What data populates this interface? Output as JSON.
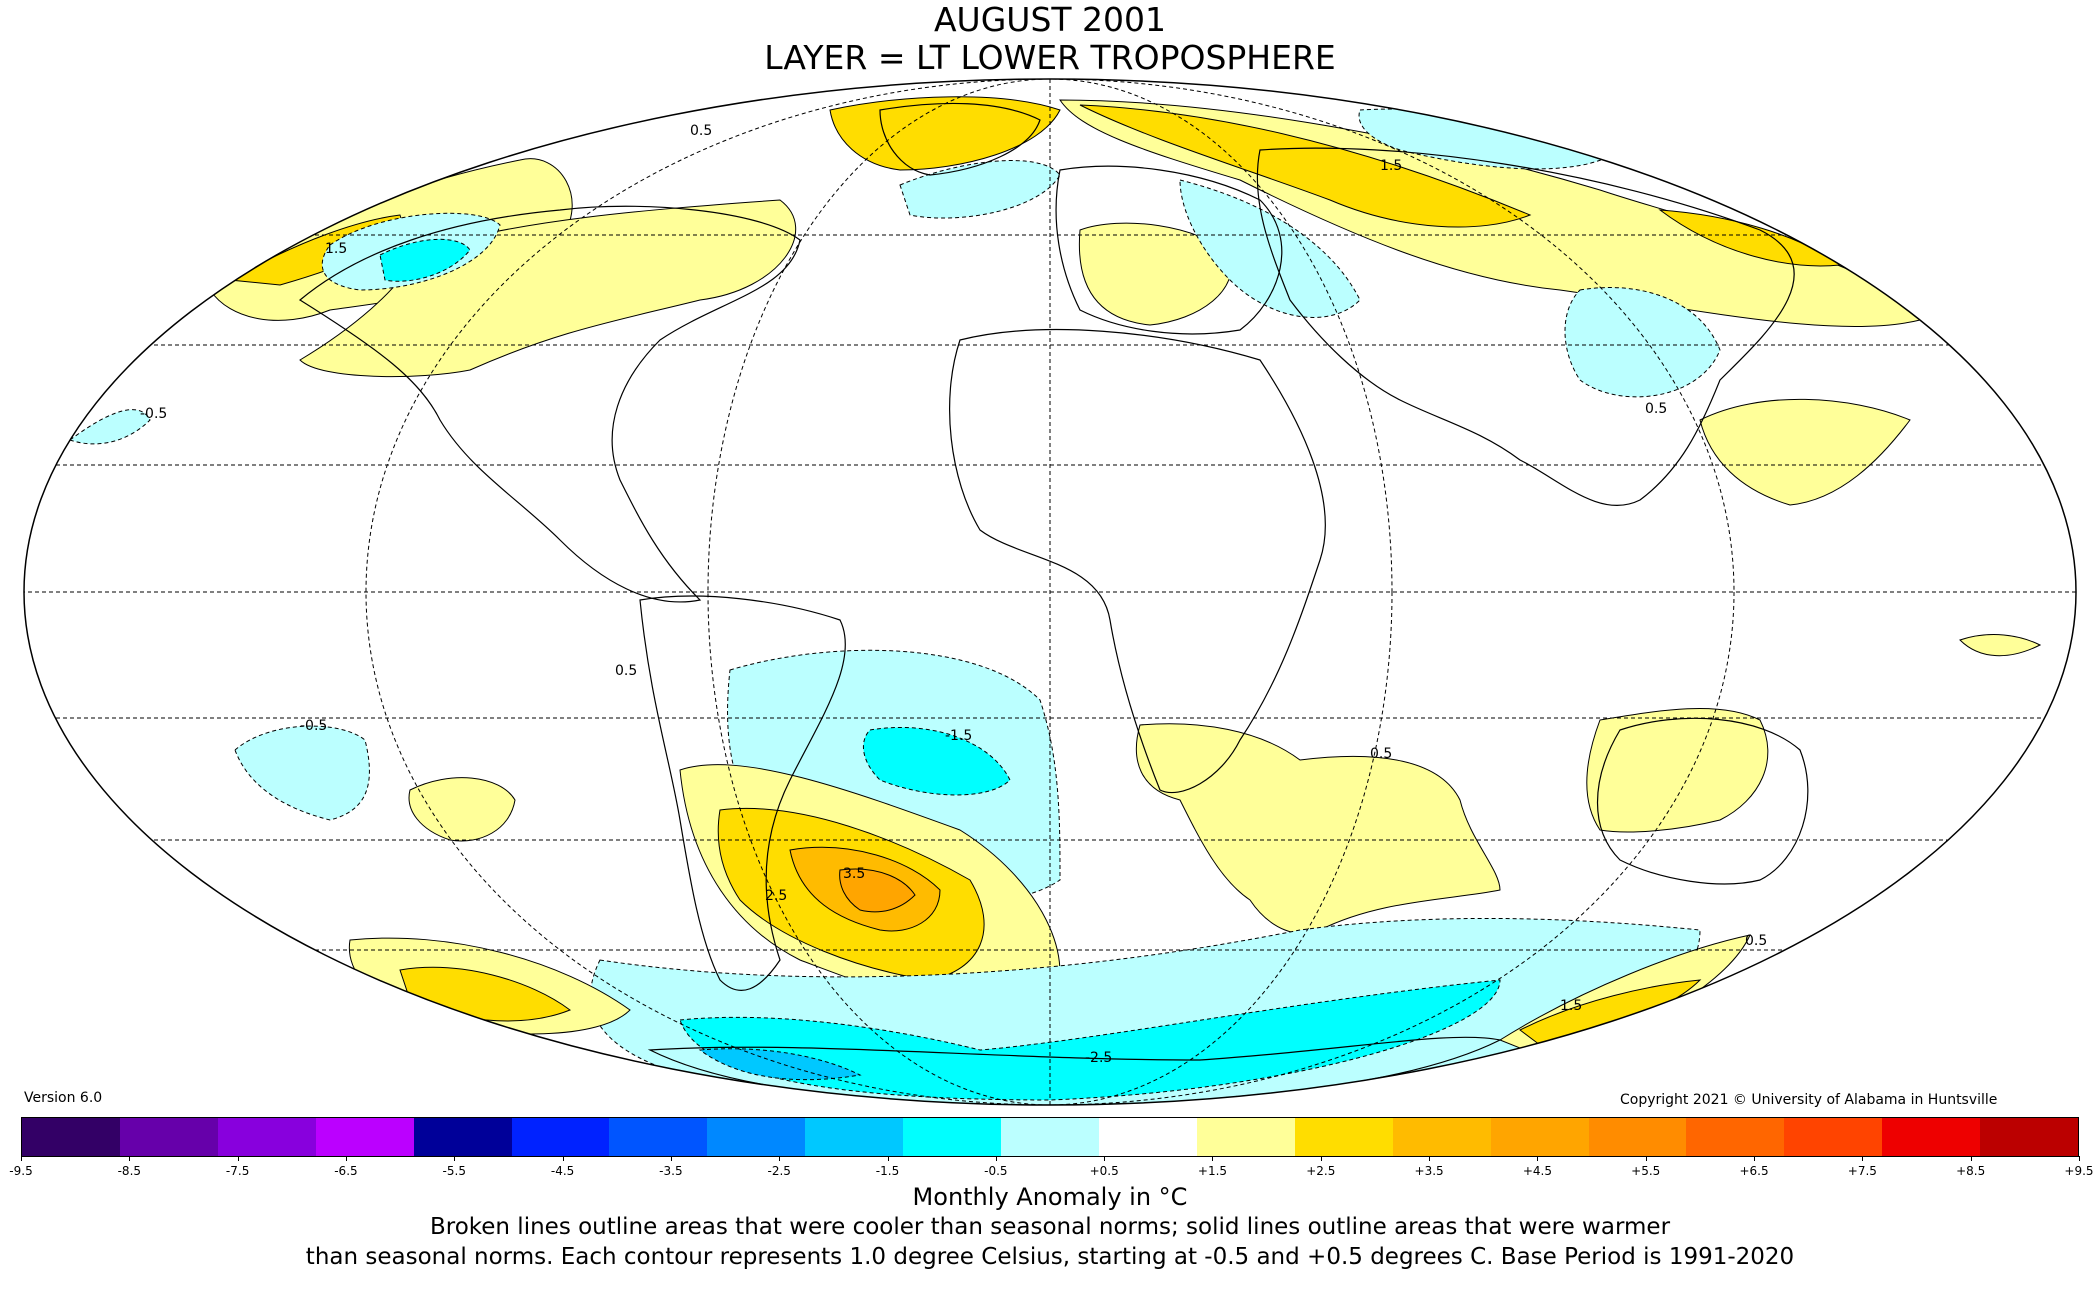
{
  "title": "AUGUST 2001",
  "subtitle": "LAYER = LT LOWER TROPOSPHERE",
  "version": "Version 6.0",
  "copyright": "Copyright 2021 © University of Alabama in Huntsville",
  "colorbar": {
    "ticks": [
      "-9.5",
      "-8.5",
      "-7.5",
      "-6.5",
      "-5.5",
      "-4.5",
      "-3.5",
      "-2.5",
      "-1.5",
      "-0.5",
      "+0.5",
      "+1.5",
      "+2.5",
      "+3.5",
      "+4.5",
      "+5.5",
      "+6.5",
      "+7.5",
      "+8.5",
      "+9.5"
    ],
    "colors": [
      "#330066",
      "#6600aa",
      "#8800dd",
      "#bb00ff",
      "#000099",
      "#0022ff",
      "#0055ff",
      "#0088ff",
      "#00c8ff",
      "#00ffff",
      "#bbffff",
      "#ffffff",
      "#ffff99",
      "#ffdd00",
      "#ffbb00",
      "#ffa500",
      "#ff8c00",
      "#ff6600",
      "#ff4400",
      "#ee0000",
      "#bb0000"
    ]
  },
  "unit_label": "Monthly Anomaly in °C",
  "caption_line1": "Broken lines outline areas that were cooler than seasonal norms; solid lines outline areas that were warmer",
  "caption_line2": "than seasonal norms. Each contour represents 1.0 degree Celsius, starting at -0.5 and +0.5 degrees C. Base Period is 1991-2020",
  "colors": {
    "warm_0_5": "#ffff99",
    "warm_1_5": "#ffdd00",
    "warm_2_5": "#ffbb00",
    "warm_3_5": "#ffa500",
    "cool_0_5": "#bbffff",
    "cool_1_5": "#00ffff",
    "cool_2_5": "#00c8ff"
  },
  "contour_labels": [
    "1.5",
    "0.5",
    "-0.5",
    "-1.5",
    "2.5",
    "3.5",
    "0.5",
    "-2.5",
    "1.5",
    "-0.5",
    "0.5",
    "1.5",
    "0.5",
    "0.5"
  ]
}
